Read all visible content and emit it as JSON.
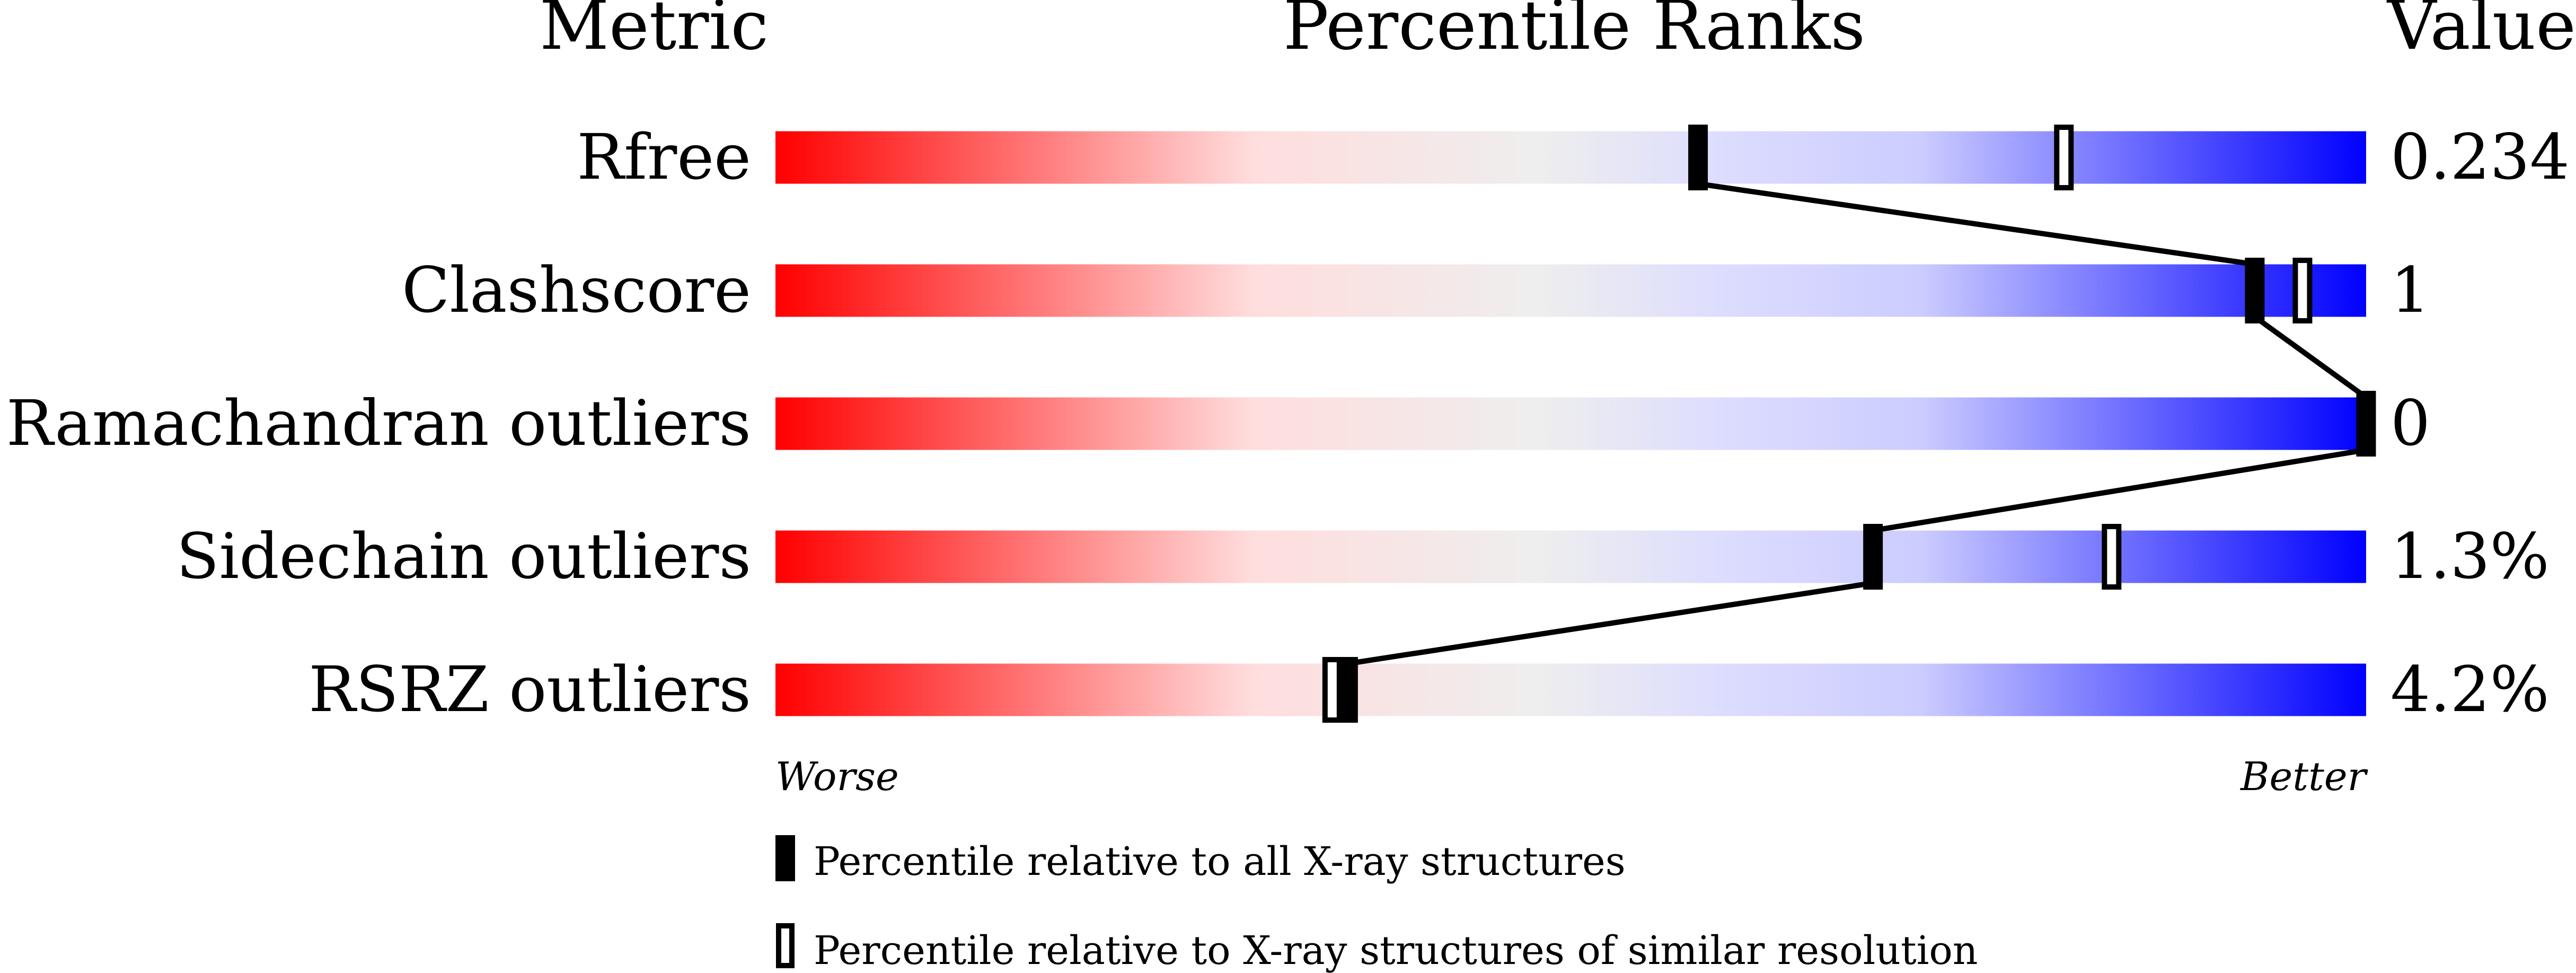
{
  "chart_data": {
    "type": "bar",
    "headers": {
      "metric": "Metric",
      "ranks": "Percentile Ranks",
      "value": "Value"
    },
    "xlim": [
      0,
      100
    ],
    "axis_labels": {
      "worse": "Worse",
      "better": "Better"
    },
    "gradient_colors": [
      "#ff0000",
      "#ffdddd",
      "#eeeeee",
      "#dcdcff",
      "#0000ff"
    ],
    "rows": [
      {
        "metric": "Rfree",
        "value": "0.234",
        "percentile_all": 58,
        "percentile_similar": 81
      },
      {
        "metric": "Clashscore",
        "value": "1",
        "percentile_all": 93,
        "percentile_similar": 96
      },
      {
        "metric": "Ramachandran outliers",
        "value": "0",
        "percentile_all": 100,
        "percentile_similar": 100
      },
      {
        "metric": "Sidechain outliers",
        "value": "1.3%",
        "percentile_all": 69,
        "percentile_similar": 84
      },
      {
        "metric": "RSRZ outliers",
        "value": "4.2%",
        "percentile_all": 36,
        "percentile_similar": 35
      }
    ],
    "legend": {
      "all": "Percentile relative to all X-ray structures",
      "similar": "Percentile relative to X-ray structures of similar resolution"
    }
  }
}
